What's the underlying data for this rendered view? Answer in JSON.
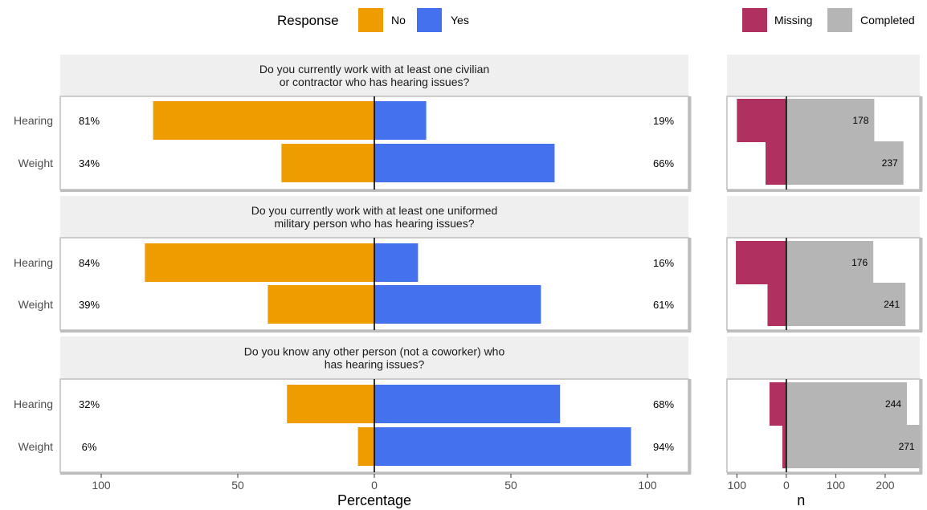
{
  "legend": {
    "response_title": "Response",
    "response_items": [
      {
        "label": "No",
        "color": "#EE9C00"
      },
      {
        "label": "Yes",
        "color": "#4472EE"
      }
    ],
    "status_items": [
      {
        "label": "Missing",
        "color": "#B03060"
      },
      {
        "label": "Completed",
        "color": "#B5B5B5"
      }
    ]
  },
  "chart_data": [
    {
      "type": "bar",
      "orientation": "horizontal-diverging",
      "xlabel": "Percentage",
      "xlim": [
        -115,
        115
      ],
      "xticks": [
        -100,
        -50,
        0,
        50,
        100
      ],
      "xtick_labels": [
        "100",
        "50",
        "0",
        "50",
        "100"
      ],
      "panels": [
        {
          "title": "Do you currently work with at least one civilian\nor contractor who has hearing issues?",
          "rows": [
            {
              "label": "Hearing",
              "no": 81,
              "yes": 19,
              "no_label": "81%",
              "yes_label": "19%"
            },
            {
              "label": "Weight",
              "no": 34,
              "yes": 66,
              "no_label": "34%",
              "yes_label": "66%"
            }
          ]
        },
        {
          "title": "Do you currently work with at least one uniformed\nmilitary person who has hearing issues?",
          "rows": [
            {
              "label": "Hearing",
              "no": 84,
              "yes": 16,
              "no_label": "84%",
              "yes_label": "16%"
            },
            {
              "label": "Weight",
              "no": 39,
              "yes": 61,
              "no_label": "39%",
              "yes_label": "61%"
            }
          ]
        },
        {
          "title": "Do you know any other person (not a coworker) who\nhas hearing issues?",
          "rows": [
            {
              "label": "Hearing",
              "no": 32,
              "yes": 68,
              "no_label": "32%",
              "yes_label": "68%"
            },
            {
              "label": "Weight",
              "no": 6,
              "yes": 94,
              "no_label": "6%",
              "yes_label": "94%"
            }
          ]
        }
      ]
    },
    {
      "type": "bar",
      "orientation": "horizontal-diverging",
      "xlabel": "n",
      "xlim": [
        -120,
        270
      ],
      "xticks": [
        -100,
        0,
        100,
        200
      ],
      "xtick_labels": [
        "100",
        "0",
        "100",
        "200"
      ],
      "panels": [
        {
          "rows": [
            {
              "missing": 100,
              "completed": 178,
              "label": "178"
            },
            {
              "missing": 42,
              "completed": 237,
              "label": "237"
            }
          ]
        },
        {
          "rows": [
            {
              "missing": 102,
              "completed": 176,
              "label": "176"
            },
            {
              "missing": 38,
              "completed": 241,
              "label": "241"
            }
          ]
        },
        {
          "rows": [
            {
              "missing": 34,
              "completed": 244,
              "label": "244"
            },
            {
              "missing": 8,
              "completed": 271,
              "label": "271"
            }
          ]
        }
      ]
    }
  ]
}
